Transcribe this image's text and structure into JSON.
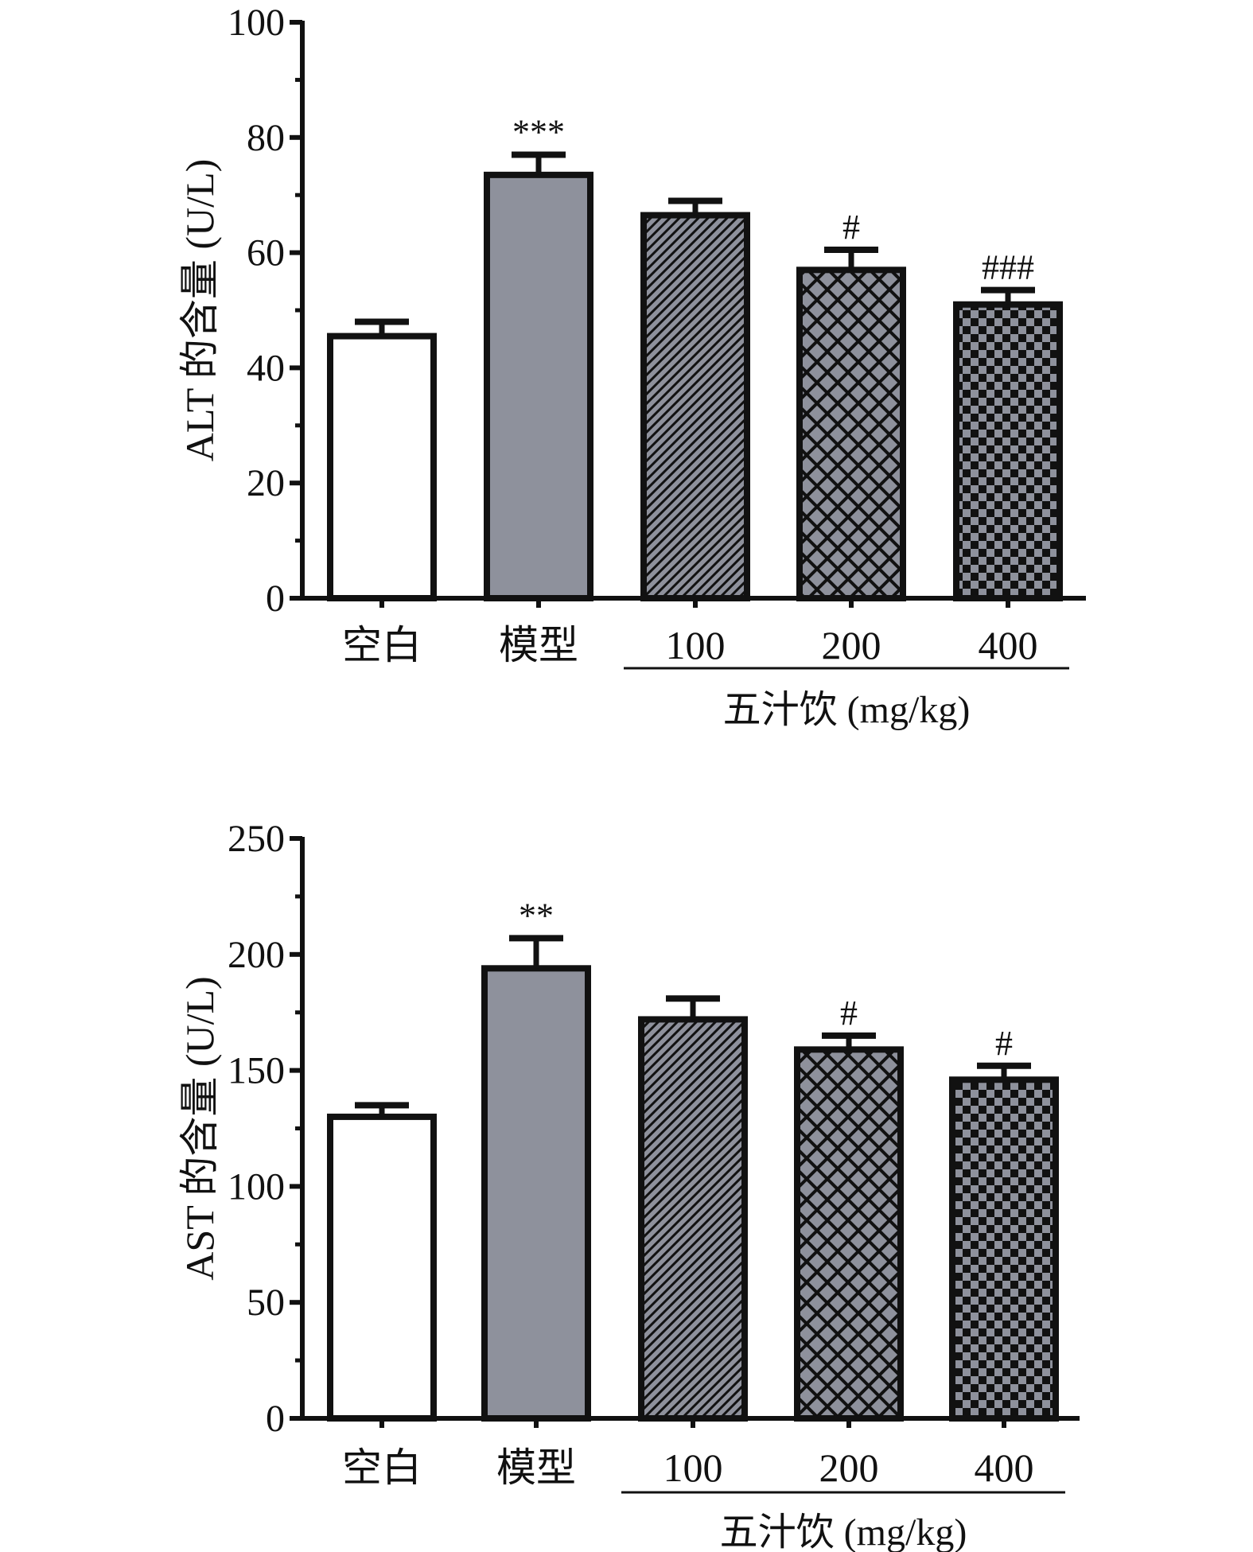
{
  "chart_data": [
    {
      "id": "alt",
      "type": "bar",
      "ylabel": "ALT 的含量 (U/L)",
      "ylim": [
        0,
        100
      ],
      "yticks": [
        0,
        20,
        40,
        60,
        80,
        100
      ],
      "categories": [
        "空白",
        "模型",
        "100",
        "200",
        "400"
      ],
      "values": [
        45.5,
        73.5,
        66.5,
        57,
        51
      ],
      "errors": [
        2.5,
        3.5,
        2.5,
        3.5,
        2.5
      ],
      "annotations": [
        "",
        "***",
        "",
        "#",
        "###"
      ],
      "group_label": "五汁饮 (mg/kg)",
      "group_categories": [
        "100",
        "200",
        "400"
      ],
      "grid": false
    },
    {
      "id": "ast",
      "type": "bar",
      "ylabel": "AST 的含量 (U/L)",
      "ylim": [
        0,
        250
      ],
      "yticks": [
        0,
        50,
        100,
        150,
        200,
        250
      ],
      "categories": [
        "空白",
        "模型",
        "100",
        "200",
        "400"
      ],
      "values": [
        130,
        194,
        172,
        159,
        146
      ],
      "errors": [
        5,
        13,
        9,
        6,
        6
      ],
      "annotations": [
        "",
        "**",
        "",
        "#",
        "#"
      ],
      "group_label": "五汁饮 (mg/kg)",
      "group_categories": [
        "100",
        "200",
        "400"
      ],
      "grid": false
    }
  ],
  "colors": {
    "blank": "#ffffff",
    "model": "#8e919c",
    "pattern_fill": "#8e919c",
    "pattern_ink": "#111111",
    "axis": "#111111"
  }
}
